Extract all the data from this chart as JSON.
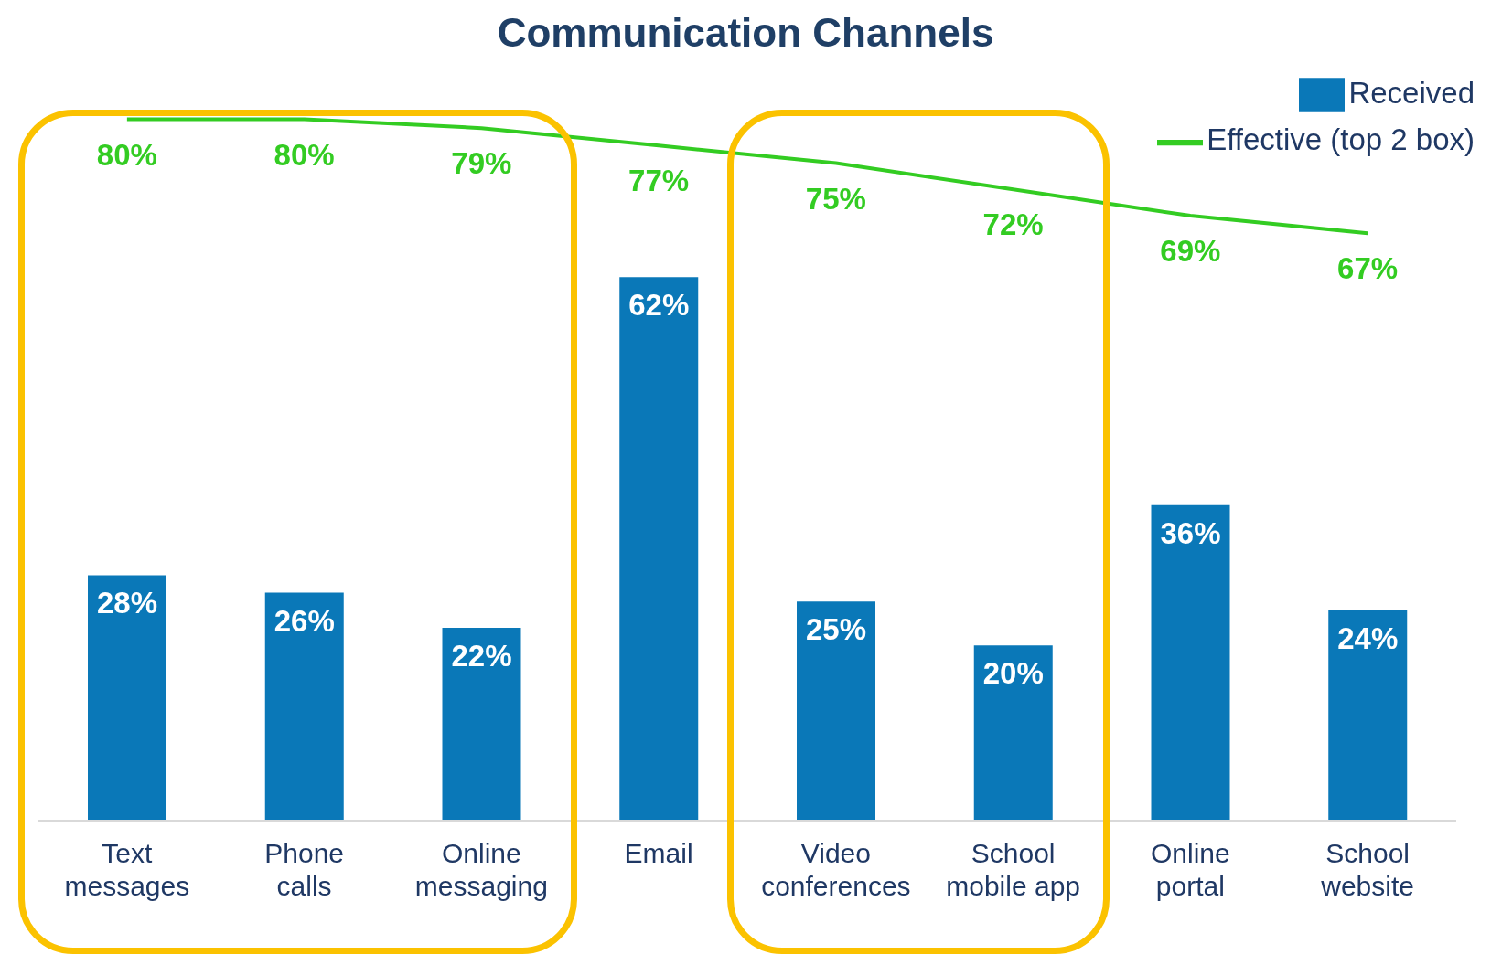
{
  "chart_data": {
    "type": "bar",
    "title": "Communication Channels",
    "categories": [
      "Text messages",
      "Phone calls",
      "Online messaging",
      "Email",
      "Video conferences",
      "School mobile app",
      "Online portal",
      "School website"
    ],
    "series": [
      {
        "name": "Received",
        "color": "#0a78b8",
        "values": [
          28,
          26,
          22,
          62,
          25,
          20,
          36,
          24
        ],
        "value_labels": [
          "28%",
          "26%",
          "22%",
          "62%",
          "25%",
          "20%",
          "36%",
          "24%"
        ]
      },
      {
        "name": "Effective (top 2 box)",
        "type": "line",
        "color": "#33cc22",
        "values": [
          80,
          80,
          79,
          77,
          75,
          72,
          69,
          67
        ],
        "value_labels": [
          "80%",
          "80%",
          "79%",
          "77%",
          "75%",
          "72%",
          "69%",
          "67%"
        ]
      }
    ],
    "legend": "top right",
    "marker": "none"
  }
}
